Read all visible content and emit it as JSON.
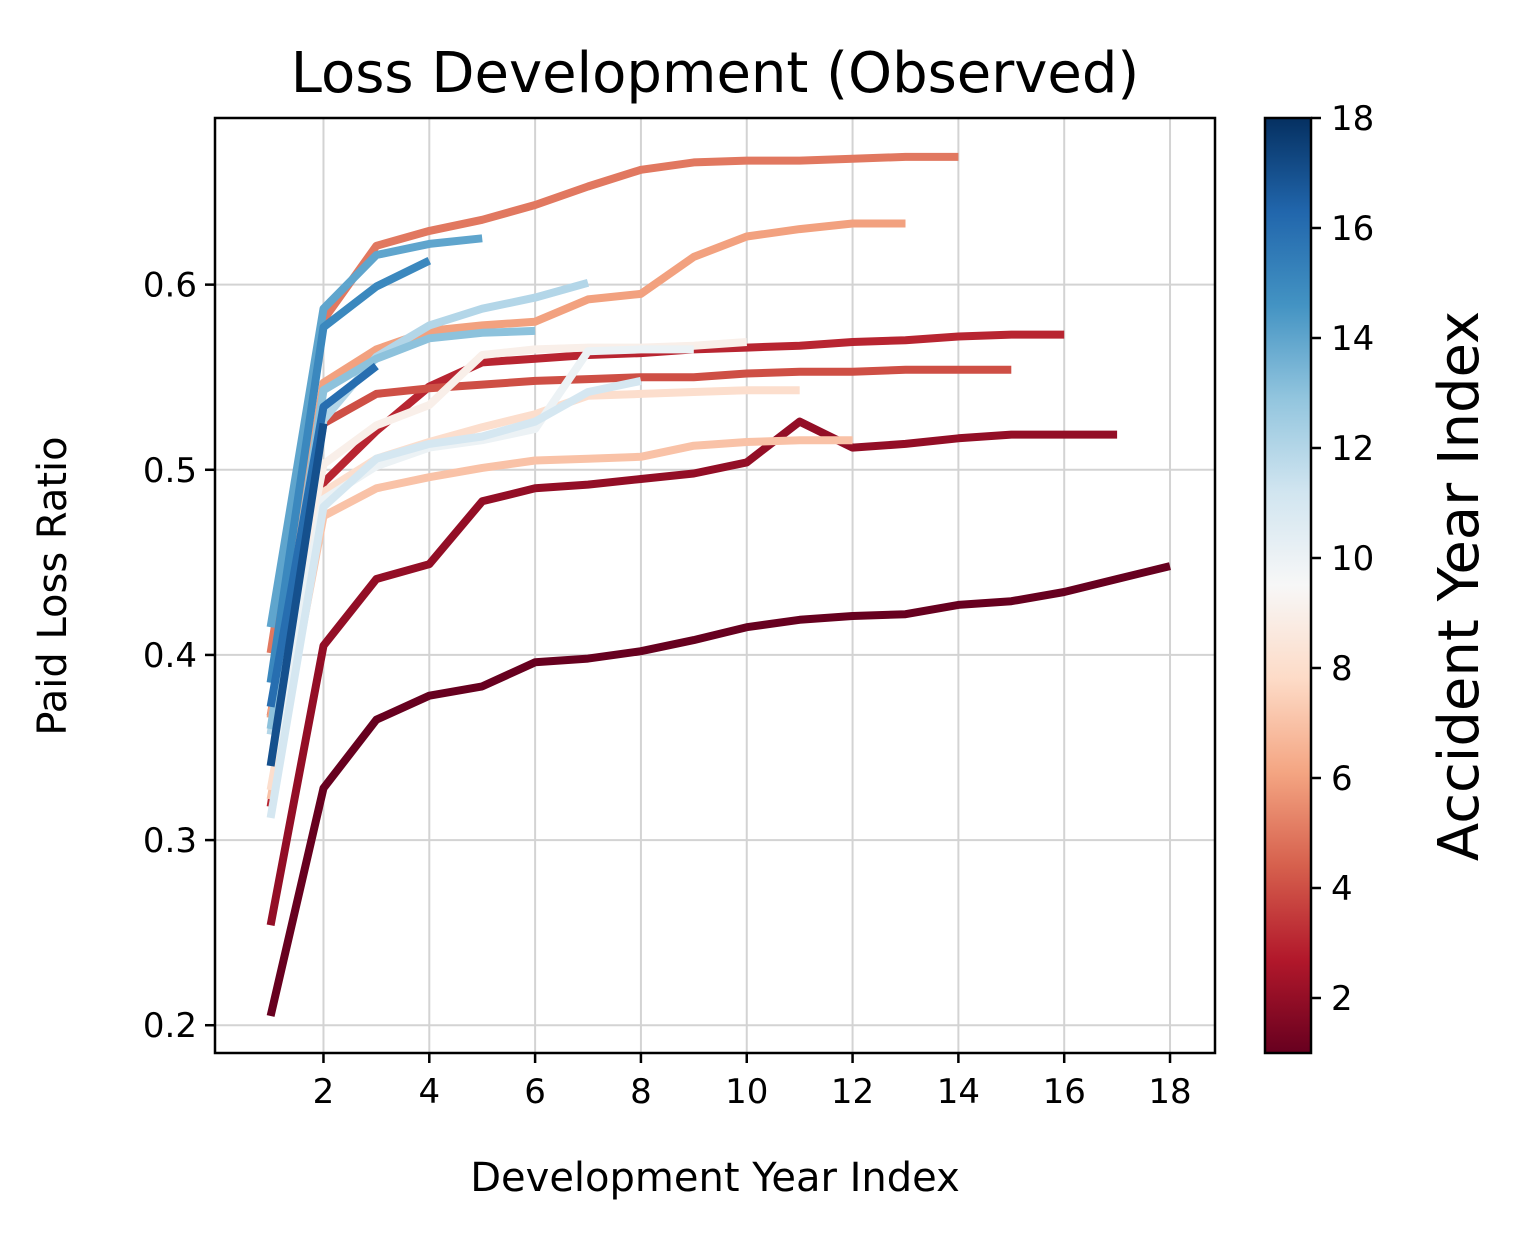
{
  "chart_data": {
    "type": "line",
    "title": "Loss Development (Observed)",
    "xlabel": "Development Year Index",
    "ylabel": "Paid Loss Ratio",
    "xlim": [
      -0.05,
      18.85
    ],
    "ylim": [
      0.185,
      0.69
    ],
    "xticks": [
      2,
      4,
      6,
      8,
      10,
      12,
      14,
      16,
      18
    ],
    "yticks": [
      0.2,
      0.3,
      0.4,
      0.5,
      0.6
    ],
    "ytick_labels": [
      "0.2",
      "0.3",
      "0.4",
      "0.5",
      "0.6"
    ],
    "grid": true,
    "colorbar": {
      "label": "Accident Year Index",
      "colormap": "RdBu",
      "range": [
        1,
        18
      ],
      "ticks": [
        2,
        4,
        6,
        8,
        10,
        12,
        14,
        16,
        18
      ],
      "stops": [
        "#67001f",
        "#b2182b",
        "#d6604d",
        "#f4a582",
        "#fddbc7",
        "#f7f7f7",
        "#d1e5f0",
        "#92c5de",
        "#4393c3",
        "#2166ac",
        "#053061"
      ]
    },
    "series": [
      {
        "name": "Accident Year 1",
        "accident_year": 1,
        "x": [
          1,
          2,
          3,
          4,
          5,
          6,
          7,
          8,
          9,
          10,
          11,
          12,
          13,
          14,
          15,
          16,
          17,
          18
        ],
        "values": [
          0.205,
          0.328,
          0.365,
          0.378,
          0.383,
          0.396,
          0.398,
          0.402,
          0.408,
          0.415,
          0.419,
          0.421,
          0.422,
          0.427,
          0.429,
          0.434,
          0.441,
          0.448
        ]
      },
      {
        "name": "Accident Year 2",
        "accident_year": 2,
        "x": [
          1,
          2,
          3,
          4,
          5,
          6,
          7,
          8,
          9,
          10,
          11,
          12,
          13,
          14,
          15,
          16,
          17
        ],
        "values": [
          0.254,
          0.405,
          0.441,
          0.449,
          0.483,
          0.49,
          0.492,
          0.495,
          0.498,
          0.504,
          0.526,
          0.512,
          0.514,
          0.517,
          0.519,
          0.519,
          0.519
        ]
      },
      {
        "name": "Accident Year 3",
        "accident_year": 3,
        "x": [
          1,
          2,
          3,
          4,
          5,
          6,
          7,
          8,
          9,
          10,
          11,
          12,
          13,
          14,
          15,
          16
        ],
        "values": [
          0.318,
          0.493,
          0.521,
          0.545,
          0.558,
          0.56,
          0.562,
          0.563,
          0.565,
          0.566,
          0.567,
          0.569,
          0.57,
          0.572,
          0.573,
          0.573
        ]
      },
      {
        "name": "Accident Year 4",
        "accident_year": 4,
        "x": [
          1,
          2,
          3,
          4,
          5,
          6,
          7,
          8,
          9,
          10,
          11,
          12,
          13,
          14,
          15
        ],
        "values": [
          0.367,
          0.525,
          0.541,
          0.544,
          0.546,
          0.548,
          0.549,
          0.55,
          0.55,
          0.552,
          0.553,
          0.553,
          0.554,
          0.554,
          0.554
        ]
      },
      {
        "name": "Accident Year 5",
        "accident_year": 5,
        "x": [
          1,
          2,
          3,
          4,
          5,
          6,
          7,
          8,
          9,
          10,
          11,
          12,
          13,
          14
        ],
        "values": [
          0.401,
          0.581,
          0.621,
          0.629,
          0.635,
          0.643,
          0.653,
          0.662,
          0.666,
          0.667,
          0.667,
          0.668,
          0.669,
          0.669
        ]
      },
      {
        "name": "Accident Year 6",
        "accident_year": 6,
        "x": [
          1,
          2,
          3,
          4,
          5,
          6,
          7,
          8,
          9,
          10,
          11,
          12,
          13
        ],
        "values": [
          0.366,
          0.547,
          0.565,
          0.575,
          0.578,
          0.58,
          0.592,
          0.595,
          0.615,
          0.626,
          0.63,
          0.633,
          0.633
        ]
      },
      {
        "name": "Accident Year 7",
        "accident_year": 7,
        "x": [
          1,
          2,
          3,
          4,
          5,
          6,
          7,
          8,
          9,
          10,
          11,
          12
        ],
        "values": [
          0.322,
          0.475,
          0.49,
          0.496,
          0.501,
          0.505,
          0.506,
          0.507,
          0.513,
          0.515,
          0.516,
          0.516
        ]
      },
      {
        "name": "Accident Year 8",
        "accident_year": 8,
        "x": [
          1,
          2,
          3,
          4,
          5,
          6,
          7,
          8,
          9,
          10,
          11
        ],
        "values": [
          0.327,
          0.488,
          0.506,
          0.515,
          0.523,
          0.53,
          0.54,
          0.541,
          0.542,
          0.543,
          0.543
        ]
      },
      {
        "name": "Accident Year 9",
        "accident_year": 9,
        "x": [
          1,
          2,
          3,
          4,
          5,
          6,
          7,
          8,
          9,
          10
        ],
        "values": [
          0.358,
          0.503,
          0.524,
          0.535,
          0.562,
          0.565,
          0.566,
          0.566,
          0.567,
          0.569
        ]
      },
      {
        "name": "Accident Year 10",
        "accident_year": 10,
        "x": [
          1,
          2,
          3,
          4,
          5,
          6,
          7,
          8,
          9
        ],
        "values": [
          0.34,
          0.484,
          0.502,
          0.512,
          0.516,
          0.522,
          0.564,
          0.565,
          0.565
        ]
      },
      {
        "name": "Accident Year 11",
        "accident_year": 11,
        "x": [
          1,
          2,
          3,
          4,
          5,
          6,
          7,
          8
        ],
        "values": [
          0.312,
          0.48,
          0.506,
          0.514,
          0.518,
          0.526,
          0.542,
          0.548
        ]
      },
      {
        "name": "Accident Year 12",
        "accident_year": 12,
        "x": [
          1,
          2,
          3,
          4,
          5,
          6,
          7
        ],
        "values": [
          0.357,
          0.527,
          0.561,
          0.578,
          0.587,
          0.593,
          0.601
        ]
      },
      {
        "name": "Accident Year 13",
        "accident_year": 13,
        "x": [
          1,
          2,
          3,
          4,
          5,
          6
        ],
        "values": [
          0.36,
          0.543,
          0.56,
          0.571,
          0.574,
          0.575
        ]
      },
      {
        "name": "Accident Year 14",
        "accident_year": 14,
        "x": [
          1,
          2,
          3,
          4,
          5
        ],
        "values": [
          0.415,
          0.587,
          0.616,
          0.622,
          0.625
        ]
      },
      {
        "name": "Accident Year 15",
        "accident_year": 15,
        "x": [
          1,
          2,
          3,
          4
        ],
        "values": [
          0.385,
          0.577,
          0.599,
          0.613
        ]
      },
      {
        "name": "Accident Year 16",
        "accident_year": 16,
        "x": [
          1,
          2,
          3
        ],
        "values": [
          0.372,
          0.534,
          0.556
        ]
      },
      {
        "name": "Accident Year 17",
        "accident_year": 17,
        "x": [
          1,
          2
        ],
        "values": [
          0.34,
          0.525
        ]
      }
    ]
  }
}
